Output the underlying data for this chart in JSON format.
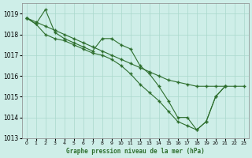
{
  "xlabel": "Graphe pression niveau de la mer (hPa)",
  "ylim": [
    1013,
    1019.5
  ],
  "xlim": [
    -0.5,
    23.5
  ],
  "yticks": [
    1013,
    1014,
    1015,
    1016,
    1017,
    1018,
    1019
  ],
  "xticks": [
    0,
    1,
    2,
    3,
    4,
    5,
    6,
    7,
    8,
    9,
    10,
    11,
    12,
    13,
    14,
    15,
    16,
    17,
    18,
    19,
    20,
    21,
    22,
    23
  ],
  "bg_color": "#ceeee8",
  "grid_color": "#aad8cc",
  "line_color": "#2d6e2d",
  "marker": "+",
  "markersize": 3.5,
  "markeredgewidth": 1.0,
  "linewidth": 0.8,
  "curve1_x": [
    0,
    1,
    2,
    3,
    4,
    5,
    6,
    7,
    8,
    9,
    10,
    11,
    12,
    13,
    14,
    15,
    16,
    17,
    18,
    19,
    20,
    21,
    22,
    23
  ],
  "curve1_y": [
    1018.8,
    1018.6,
    1018.4,
    1018.2,
    1018.0,
    1017.8,
    1017.6,
    1017.4,
    1017.2,
    1017.0,
    1016.8,
    1016.6,
    1016.4,
    1016.2,
    1016.0,
    1015.8,
    1015.7,
    1015.6,
    1015.5,
    1015.5,
    1015.5,
    1015.5,
    1015.5,
    1015.5
  ],
  "curve2_x": [
    0,
    1,
    2,
    3,
    4,
    5,
    6,
    7,
    8,
    9,
    10,
    11,
    12,
    13,
    14,
    15,
    16,
    17,
    18,
    19,
    20,
    21
  ],
  "curve2_y": [
    1018.8,
    1018.5,
    1019.2,
    1018.1,
    1017.8,
    1017.6,
    1017.4,
    1017.2,
    1017.8,
    1017.8,
    1017.5,
    1017.3,
    1016.5,
    1016.1,
    1015.5,
    1014.8,
    1014.0,
    1014.0,
    1013.4,
    1013.8,
    1015.0,
    1015.5
  ],
  "curve3_x": [
    0,
    1,
    2,
    3,
    4,
    5,
    6,
    7,
    8,
    9,
    10,
    11,
    12,
    13,
    14,
    15,
    16,
    17,
    18,
    19,
    20,
    21
  ],
  "curve3_y": [
    1018.8,
    1018.5,
    1018.0,
    1017.8,
    1017.7,
    1017.5,
    1017.3,
    1017.1,
    1017.0,
    1016.8,
    1016.5,
    1016.1,
    1015.6,
    1015.2,
    1014.8,
    1014.3,
    1013.8,
    1013.6,
    1013.4,
    1013.8,
    1015.0,
    1015.5
  ]
}
